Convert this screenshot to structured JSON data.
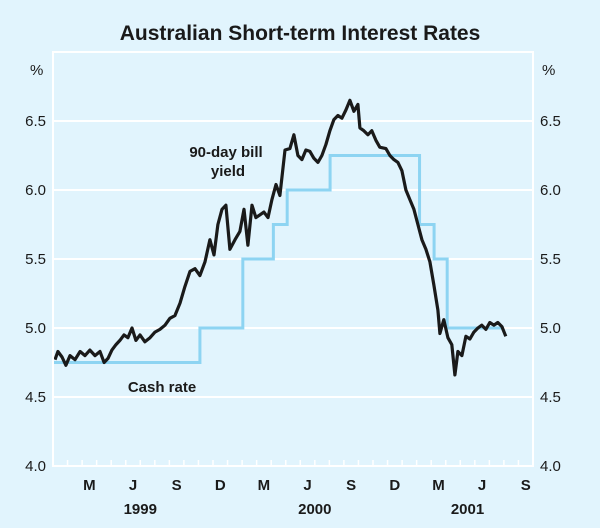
{
  "chart_data": {
    "type": "line",
    "title": "Australian Short-term Interest Rates",
    "ylabel_left": "%",
    "ylabel_right": "%",
    "ylim": [
      4.0,
      7.0
    ],
    "yticks": [
      "4.0",
      "4.5",
      "5.0",
      "5.5",
      "6.0",
      "6.5"
    ],
    "ytick_values": [
      4.0,
      4.5,
      5.0,
      5.5,
      6.0,
      6.5
    ],
    "x_unit": "months since start of Jan 1999",
    "xlim": [
      0,
      33
    ],
    "month_labels": [
      {
        "label": "M",
        "month": 2
      },
      {
        "label": "J",
        "month": 5
      },
      {
        "label": "S",
        "month": 8
      },
      {
        "label": "D",
        "month": 11
      },
      {
        "label": "M",
        "month": 14
      },
      {
        "label": "J",
        "month": 17
      },
      {
        "label": "S",
        "month": 20
      },
      {
        "label": "D",
        "month": 23
      },
      {
        "label": "M",
        "month": 26
      },
      {
        "label": "J",
        "month": 29
      },
      {
        "label": "S",
        "month": 32
      }
    ],
    "year_labels": [
      {
        "label": "1999",
        "start": 0,
        "end": 12
      },
      {
        "label": "2000",
        "start": 12,
        "end": 24
      },
      {
        "label": "2001",
        "start": 24,
        "end": 33
      }
    ],
    "grid": true,
    "annotations": {
      "bill_line1": "90-day bill",
      "bill_line2": "yield",
      "cash": "Cash rate"
    },
    "series": [
      {
        "name": "90-day bill yield",
        "color": "#1a1a1a",
        "points": [
          [
            0.14,
            4.77
          ],
          [
            0.34,
            4.83
          ],
          [
            0.62,
            4.79
          ],
          [
            0.89,
            4.73
          ],
          [
            1.17,
            4.8
          ],
          [
            1.51,
            4.77
          ],
          [
            1.86,
            4.83
          ],
          [
            2.2,
            4.8
          ],
          [
            2.54,
            4.84
          ],
          [
            2.89,
            4.8
          ],
          [
            3.23,
            4.83
          ],
          [
            3.51,
            4.75
          ],
          [
            3.78,
            4.78
          ],
          [
            4.05,
            4.84
          ],
          [
            4.33,
            4.88
          ],
          [
            4.6,
            4.91
          ],
          [
            4.88,
            4.95
          ],
          [
            5.15,
            4.93
          ],
          [
            5.43,
            5.0
          ],
          [
            5.7,
            4.91
          ],
          [
            5.98,
            4.95
          ],
          [
            6.32,
            4.9
          ],
          [
            6.67,
            4.93
          ],
          [
            7.01,
            4.97
          ],
          [
            7.35,
            4.99
          ],
          [
            7.7,
            5.02
          ],
          [
            8.04,
            5.07
          ],
          [
            8.38,
            5.09
          ],
          [
            8.73,
            5.18
          ],
          [
            9.07,
            5.3
          ],
          [
            9.42,
            5.41
          ],
          [
            9.76,
            5.43
          ],
          [
            10.1,
            5.38
          ],
          [
            10.45,
            5.48
          ],
          [
            10.79,
            5.64
          ],
          [
            11.07,
            5.53
          ],
          [
            11.34,
            5.75
          ],
          [
            11.62,
            5.86
          ],
          [
            11.89,
            5.89
          ],
          [
            12.16,
            5.57
          ],
          [
            12.51,
            5.64
          ],
          [
            12.85,
            5.7
          ],
          [
            13.13,
            5.86
          ],
          [
            13.4,
            5.6
          ],
          [
            13.68,
            5.89
          ],
          [
            13.95,
            5.8
          ],
          [
            14.23,
            5.82
          ],
          [
            14.5,
            5.84
          ],
          [
            14.78,
            5.8
          ],
          [
            15.05,
            5.93
          ],
          [
            15.33,
            6.04
          ],
          [
            15.6,
            5.96
          ],
          [
            15.95,
            6.29
          ],
          [
            16.29,
            6.3
          ],
          [
            16.56,
            6.4
          ],
          [
            16.84,
            6.25
          ],
          [
            17.11,
            6.22
          ],
          [
            17.39,
            6.29
          ],
          [
            17.66,
            6.28
          ],
          [
            17.94,
            6.23
          ],
          [
            18.21,
            6.2
          ],
          [
            18.49,
            6.25
          ],
          [
            18.76,
            6.33
          ],
          [
            19.04,
            6.43
          ],
          [
            19.31,
            6.51
          ],
          [
            19.59,
            6.54
          ],
          [
            19.86,
            6.52
          ],
          [
            20.14,
            6.58
          ],
          [
            20.41,
            6.65
          ],
          [
            20.69,
            6.57
          ],
          [
            20.96,
            6.62
          ],
          [
            21.1,
            6.45
          ],
          [
            21.37,
            6.43
          ],
          [
            21.65,
            6.4
          ],
          [
            21.92,
            6.43
          ],
          [
            22.2,
            6.36
          ],
          [
            22.47,
            6.31
          ],
          [
            22.89,
            6.3
          ],
          [
            23.16,
            6.25
          ],
          [
            23.44,
            6.22
          ],
          [
            23.71,
            6.2
          ],
          [
            23.99,
            6.14
          ],
          [
            24.26,
            6.0
          ],
          [
            24.54,
            5.93
          ],
          [
            24.81,
            5.86
          ],
          [
            25.09,
            5.75
          ],
          [
            25.36,
            5.64
          ],
          [
            25.64,
            5.57
          ],
          [
            25.91,
            5.48
          ],
          [
            26.19,
            5.31
          ],
          [
            26.46,
            5.13
          ],
          [
            26.6,
            4.96
          ],
          [
            26.87,
            5.06
          ],
          [
            27.15,
            4.93
          ],
          [
            27.42,
            4.88
          ],
          [
            27.63,
            4.66
          ],
          [
            27.84,
            4.83
          ],
          [
            28.11,
            4.8
          ],
          [
            28.39,
            4.94
          ],
          [
            28.66,
            4.92
          ],
          [
            28.94,
            4.97
          ],
          [
            29.21,
            5.0
          ],
          [
            29.48,
            5.02
          ],
          [
            29.76,
            4.99
          ],
          [
            30.03,
            5.04
          ],
          [
            30.31,
            5.02
          ],
          [
            30.58,
            5.04
          ],
          [
            30.86,
            5.01
          ],
          [
            31.13,
            4.94
          ]
        ]
      },
      {
        "name": "Cash rate",
        "color": "#8dd4f2",
        "steps": [
          [
            0,
            4.75
          ],
          [
            10.1,
            5.0
          ],
          [
            13.05,
            5.5
          ],
          [
            15.15,
            5.75
          ],
          [
            16.1,
            6.0
          ],
          [
            19.05,
            6.25
          ],
          [
            25.2,
            5.75
          ],
          [
            26.2,
            5.5
          ],
          [
            27.1,
            5.0
          ],
          [
            31.0,
            5.0
          ]
        ]
      }
    ]
  }
}
